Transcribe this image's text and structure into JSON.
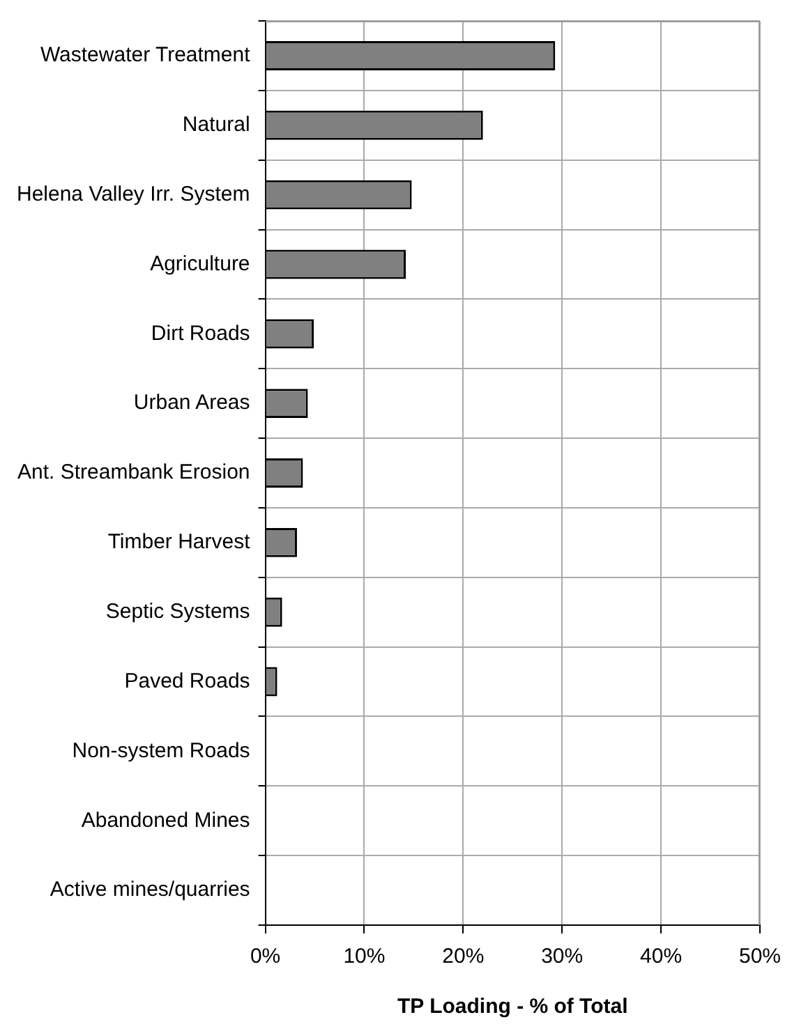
{
  "chart_data": {
    "type": "bar",
    "orientation": "horizontal",
    "xlabel": "TP Loading - % of Total",
    "categories": [
      "Wastewater Treatment",
      "Natural",
      "Helena Valley Irr. System",
      "Agriculture",
      "Dirt Roads",
      "Urban Areas",
      "Ant. Streambank Erosion",
      "Timber Harvest",
      "Septic Systems",
      "Paved Roads",
      "Non-system Roads",
      "Abandoned Mines",
      "Active mines/quarries"
    ],
    "values": [
      29.3,
      22.0,
      14.8,
      14.2,
      4.9,
      4.3,
      3.8,
      3.2,
      1.7,
      1.2,
      0,
      0,
      0
    ],
    "color": "#808080",
    "xlim": [
      0,
      50
    ],
    "xticks": [
      {
        "value": 0,
        "label": "0%"
      },
      {
        "value": 10,
        "label": "10%"
      },
      {
        "value": 20,
        "label": "20%"
      },
      {
        "value": 30,
        "label": "30%"
      },
      {
        "value": 40,
        "label": "40%"
      },
      {
        "value": 50,
        "label": "50%"
      }
    ],
    "grid": true,
    "legend": false
  }
}
